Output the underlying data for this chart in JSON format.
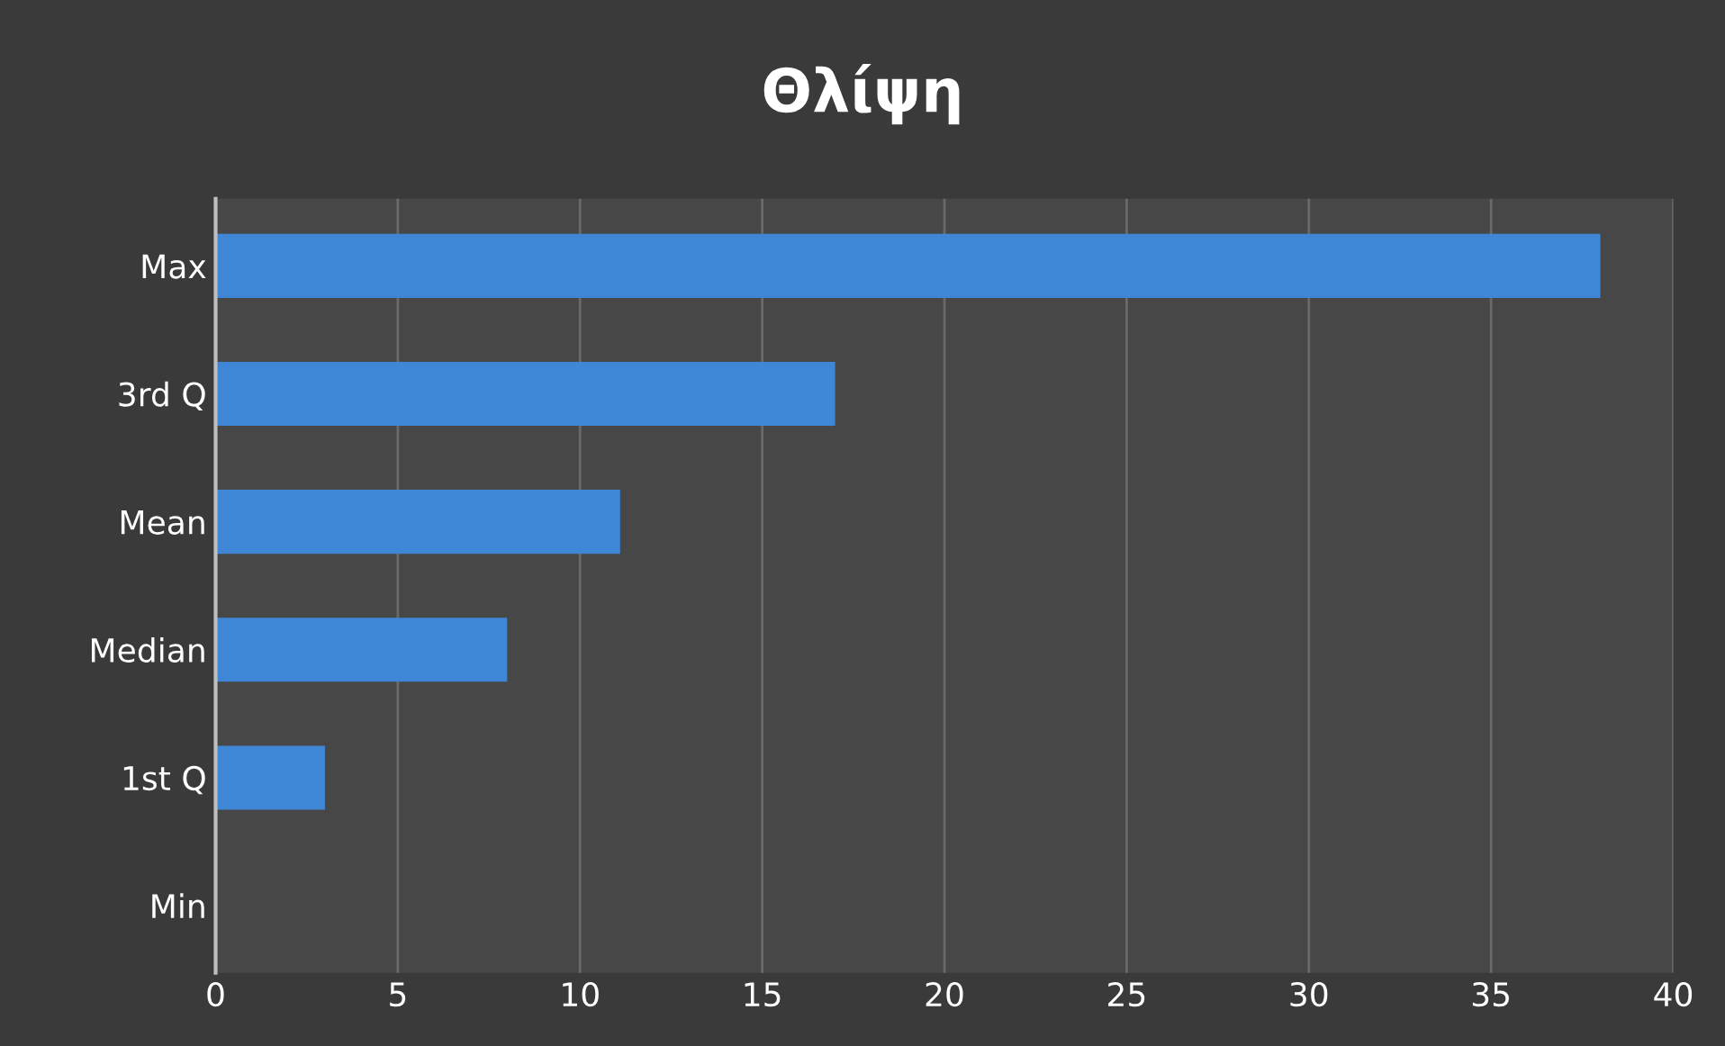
{
  "chart_data": {
    "type": "bar",
    "orientation": "horizontal",
    "title": "Θλίψη",
    "categories": [
      "Max",
      "3rd Q",
      "Mean",
      "Median",
      "1st Q",
      "Min"
    ],
    "values": [
      38,
      17,
      11.1,
      8,
      3,
      0
    ],
    "color": "#3f86d6",
    "xlim": [
      0,
      40
    ],
    "xticks": [
      0,
      5,
      10,
      15,
      20,
      25,
      30,
      35,
      40
    ],
    "grid": "x"
  }
}
